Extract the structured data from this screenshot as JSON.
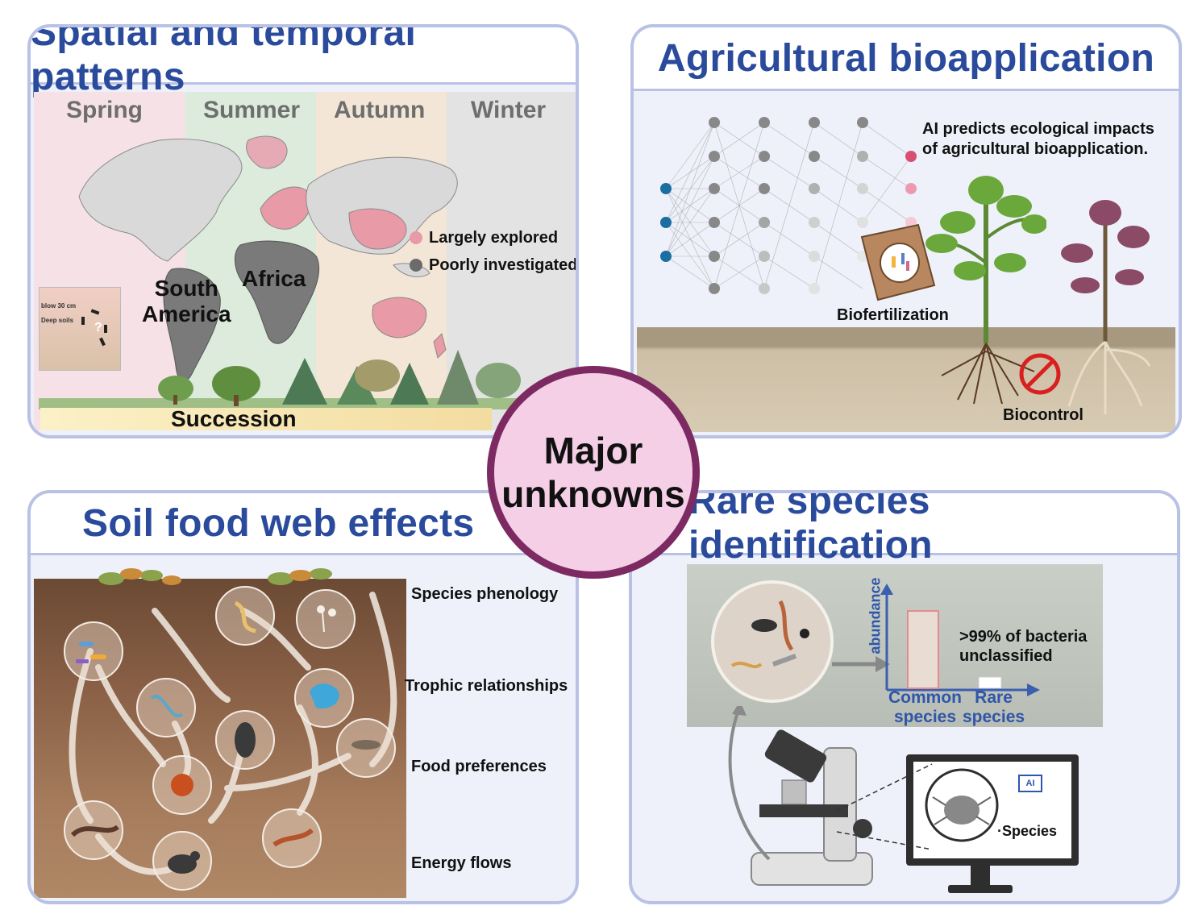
{
  "panels": {
    "spatial": {
      "title": "Spatial and temporal patterns",
      "seasons": [
        "Spring",
        "Summer",
        "Autumn",
        "Winter"
      ],
      "legend": {
        "explored": "Largely explored",
        "poor": "Poorly investigated"
      },
      "continents": {
        "south_america": "South\nAmerica",
        "africa": "Africa"
      },
      "inset": {
        "depth": "blow 30 cm",
        "deep": "Deep soils"
      },
      "succession": "Succession"
    },
    "agri": {
      "title": "Agricultural bioapplication",
      "ai_text": "AI predicts ecological impacts\nof agricultural bioapplication.",
      "biofertilization": "Biofertilization",
      "biocontrol": "Biocontrol"
    },
    "foodweb": {
      "title": "Soil food web effects",
      "labels": [
        "Species phenology",
        "Trophic relationships",
        "Food preferences",
        "Energy flows"
      ]
    },
    "rare": {
      "title": "Rare species identification",
      "y_axis": "abundance",
      "note": ">99% of bacteria\nunclassified",
      "common": "Common\nspecies",
      "rare_lbl": "Rare\nspecies",
      "ai_chip": "AI",
      "species": "·Species"
    }
  },
  "center": {
    "line1": "Major",
    "line2": "unknowns"
  },
  "colors": {
    "accent_blue": "#2a4a9c",
    "border": "#b9c2e4",
    "explored": "#e89aa6",
    "poor": "#6b6b6b",
    "badge_fill": "#f5cfe6",
    "badge_ring": "#7d2a62"
  }
}
